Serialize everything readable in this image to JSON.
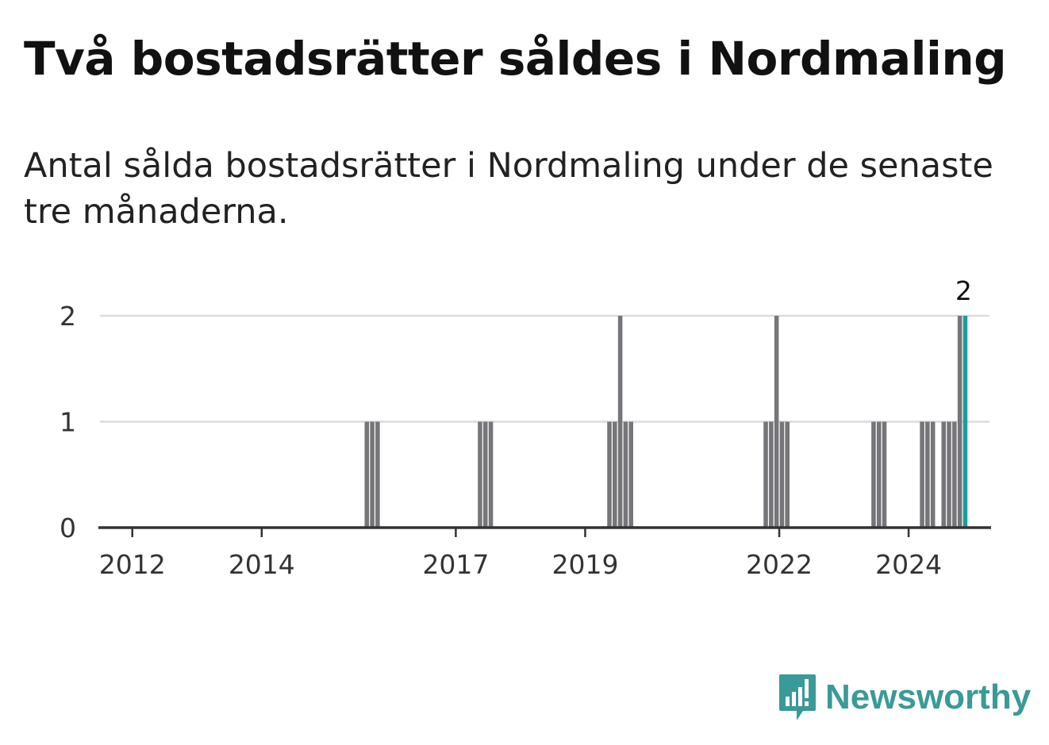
{
  "header": {
    "title": "Två bostadsrätter såldes i Nordmaling",
    "subtitle": "Antal sålda bostadsrätter i Nordmaling under de senaste tre månaderna."
  },
  "brand": {
    "name": "Newsworthy",
    "icon": "newsworthy-logo-icon",
    "color": "#3a9a98"
  },
  "colors": {
    "bar": "#76767a",
    "highlight": "#1a9e9b",
    "grid": "#dcdcdc",
    "axis": "#333333"
  },
  "chart_data": {
    "type": "bar",
    "title": "Två bostadsrätter såldes i Nordmaling",
    "subtitle": "Antal sålda bostadsrätter i Nordmaling under de senaste tre månaderna.",
    "xlabel": "",
    "ylabel": "",
    "x_range": [
      "2011-07",
      "2025-04"
    ],
    "ylim": [
      0,
      2
    ],
    "y_ticks": [
      0,
      1,
      2
    ],
    "x_ticks": [
      {
        "label": "2012",
        "date": "2012-01"
      },
      {
        "label": "2014",
        "date": "2014-01"
      },
      {
        "label": "2017",
        "date": "2017-01"
      },
      {
        "label": "2019",
        "date": "2019-01"
      },
      {
        "label": "2022",
        "date": "2022-01"
      },
      {
        "label": "2024",
        "date": "2024-01"
      }
    ],
    "grid": true,
    "legend": "none",
    "series": [
      {
        "bars": [
          {
            "date": "2015-08",
            "value": 1
          },
          {
            "date": "2015-09",
            "value": 1
          },
          {
            "date": "2015-10",
            "value": 1
          },
          {
            "date": "2017-05",
            "value": 1
          },
          {
            "date": "2017-06",
            "value": 1
          },
          {
            "date": "2017-07",
            "value": 1
          },
          {
            "date": "2019-05",
            "value": 1
          },
          {
            "date": "2019-06",
            "value": 1
          },
          {
            "date": "2019-07",
            "value": 2
          },
          {
            "date": "2019-08",
            "value": 1
          },
          {
            "date": "2019-09",
            "value": 1
          },
          {
            "date": "2021-10",
            "value": 1
          },
          {
            "date": "2021-11",
            "value": 1
          },
          {
            "date": "2021-12",
            "value": 2
          },
          {
            "date": "2022-01",
            "value": 1
          },
          {
            "date": "2022-02",
            "value": 1
          },
          {
            "date": "2023-06",
            "value": 1
          },
          {
            "date": "2023-07",
            "value": 1
          },
          {
            "date": "2023-08",
            "value": 1
          },
          {
            "date": "2024-03",
            "value": 1
          },
          {
            "date": "2024-04",
            "value": 1
          },
          {
            "date": "2024-05",
            "value": 1
          },
          {
            "date": "2024-07",
            "value": 1
          },
          {
            "date": "2024-08",
            "value": 1
          },
          {
            "date": "2024-09",
            "value": 1
          },
          {
            "date": "2024-10",
            "value": 2
          },
          {
            "date": "2024-11",
            "value": 2,
            "highlight": true,
            "label": "2"
          }
        ]
      }
    ]
  }
}
